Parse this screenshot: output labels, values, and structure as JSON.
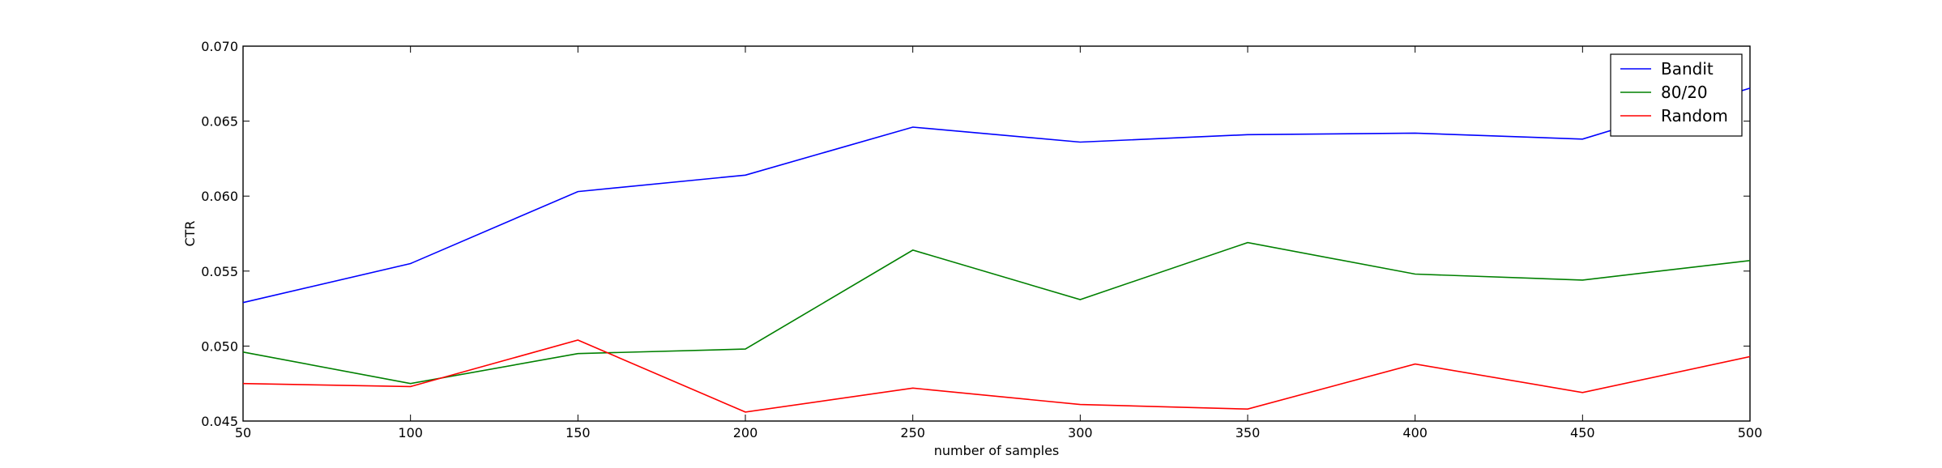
{
  "chart_data": {
    "type": "line",
    "title": "",
    "xlabel": "number of samples",
    "ylabel": "CTR",
    "x": [
      50,
      100,
      150,
      200,
      250,
      300,
      350,
      400,
      450,
      500
    ],
    "xlim": [
      50,
      500
    ],
    "ylim": [
      0.045,
      0.07
    ],
    "x_ticks": [
      "50",
      "100",
      "150",
      "200",
      "250",
      "300",
      "350",
      "400",
      "450",
      "500"
    ],
    "y_ticks": [
      "0.045",
      "0.050",
      "0.055",
      "0.060",
      "0.065",
      "0.070"
    ],
    "grid": false,
    "legend_position": "top-right",
    "series": [
      {
        "name": "Bandit",
        "color": "#0000ff",
        "values": [
          0.0529,
          0.0555,
          0.0603,
          0.0614,
          0.0646,
          0.0636,
          0.0641,
          0.0642,
          0.0638,
          0.0672
        ]
      },
      {
        "name": "80/20",
        "color": "#008000",
        "values": [
          0.0496,
          0.0475,
          0.0495,
          0.0498,
          0.0564,
          0.0531,
          0.0569,
          0.0548,
          0.0544,
          0.0557
        ]
      },
      {
        "name": "Random",
        "color": "#ff0000",
        "values": [
          0.0475,
          0.0473,
          0.0504,
          0.0456,
          0.0472,
          0.0461,
          0.0458,
          0.0488,
          0.0469,
          0.0493
        ]
      }
    ]
  }
}
